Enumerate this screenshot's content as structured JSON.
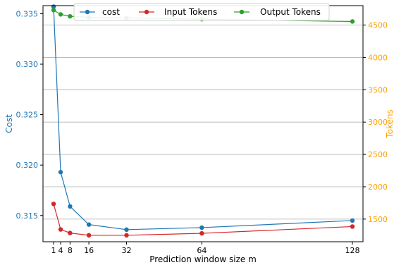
{
  "chart_data": {
    "type": "line",
    "xlabel": "Prediction window size m",
    "ylabel_left": "Cost",
    "ylabel_right": "Tokens",
    "x_ticks": [
      1,
      4,
      8,
      16,
      32,
      64,
      128
    ],
    "x_range": [
      -3.5,
      132.5
    ],
    "left_axis": {
      "ylim": [
        0.3124,
        0.3358
      ],
      "ticks": [
        0.315,
        0.32,
        0.325,
        0.33,
        0.335
      ],
      "tick_labels": [
        "0.315",
        "0.320",
        "0.325",
        "0.330",
        "0.335"
      ],
      "color": "#1f77b4"
    },
    "right_axis": {
      "ylim": [
        1150,
        4800
      ],
      "ticks": [
        1500,
        2000,
        2500,
        3000,
        3500,
        4000,
        4500
      ],
      "tick_labels": [
        "1500",
        "2000",
        "2500",
        "3000",
        "3500",
        "4000",
        "4500"
      ],
      "color": "#ff9f00"
    },
    "grid": "horizontal",
    "legend_placement": "top-center",
    "series": [
      {
        "name": "cost",
        "axis": "left",
        "color": "#1f77b4",
        "x": [
          1,
          4,
          8,
          16,
          32,
          64,
          128
        ],
        "values": [
          0.3357,
          0.3193,
          0.3159,
          0.3141,
          0.3136,
          0.3138,
          0.3145
        ]
      },
      {
        "name": "Input Tokens",
        "axis": "right",
        "color": "#d62728",
        "x": [
          1,
          4,
          8,
          16,
          32,
          64,
          128
        ],
        "values": [
          1735,
          1340,
          1285,
          1250,
          1250,
          1280,
          1385
        ]
      },
      {
        "name": "Output Tokens",
        "axis": "right",
        "color": "#2ca02c",
        "x": [
          1,
          4,
          8,
          16,
          32,
          64,
          128
        ],
        "values": [
          4730,
          4665,
          4635,
          4620,
          4610,
          4590,
          4555
        ]
      }
    ]
  }
}
